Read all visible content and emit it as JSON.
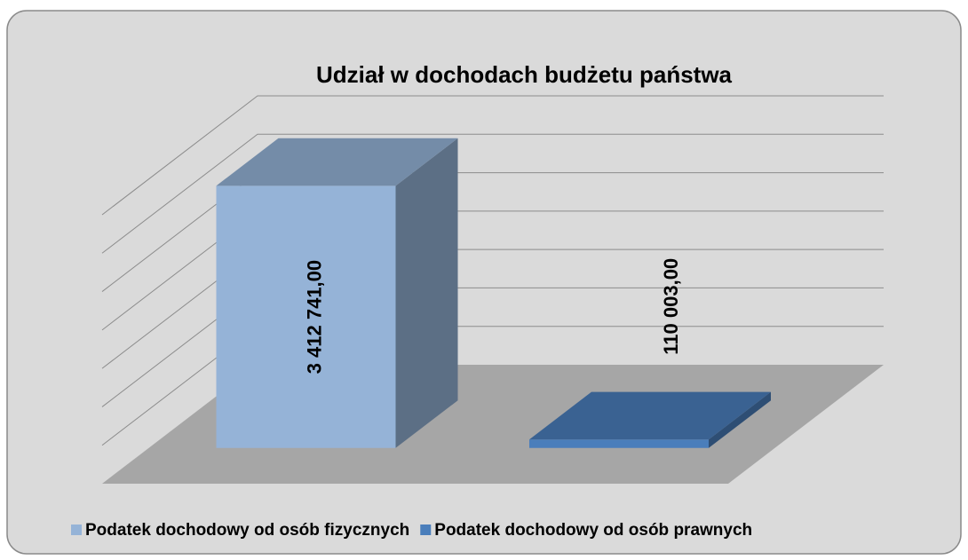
{
  "chart_data": {
    "type": "bar3d",
    "title": "Udział w dochodach budżetu państwa",
    "categories": [
      null
    ],
    "series": [
      {
        "name": "Podatek dochodowy od osób fizycznych",
        "color": "#95b3d7",
        "values": [
          3412741
        ],
        "value_labels": [
          "3 412 741,00"
        ]
      },
      {
        "name": "Podatek dochodowy od osób prawnych",
        "color": "#4a7ebb",
        "values": [
          110003
        ],
        "value_labels": [
          "110 003,00"
        ]
      }
    ],
    "ylim": [
      0,
      3500000
    ],
    "yticks": [
      0,
      500000,
      1000000,
      1500000,
      2000000,
      2500000,
      3000000,
      3500000
    ],
    "grid": true,
    "legend": "bottom"
  }
}
